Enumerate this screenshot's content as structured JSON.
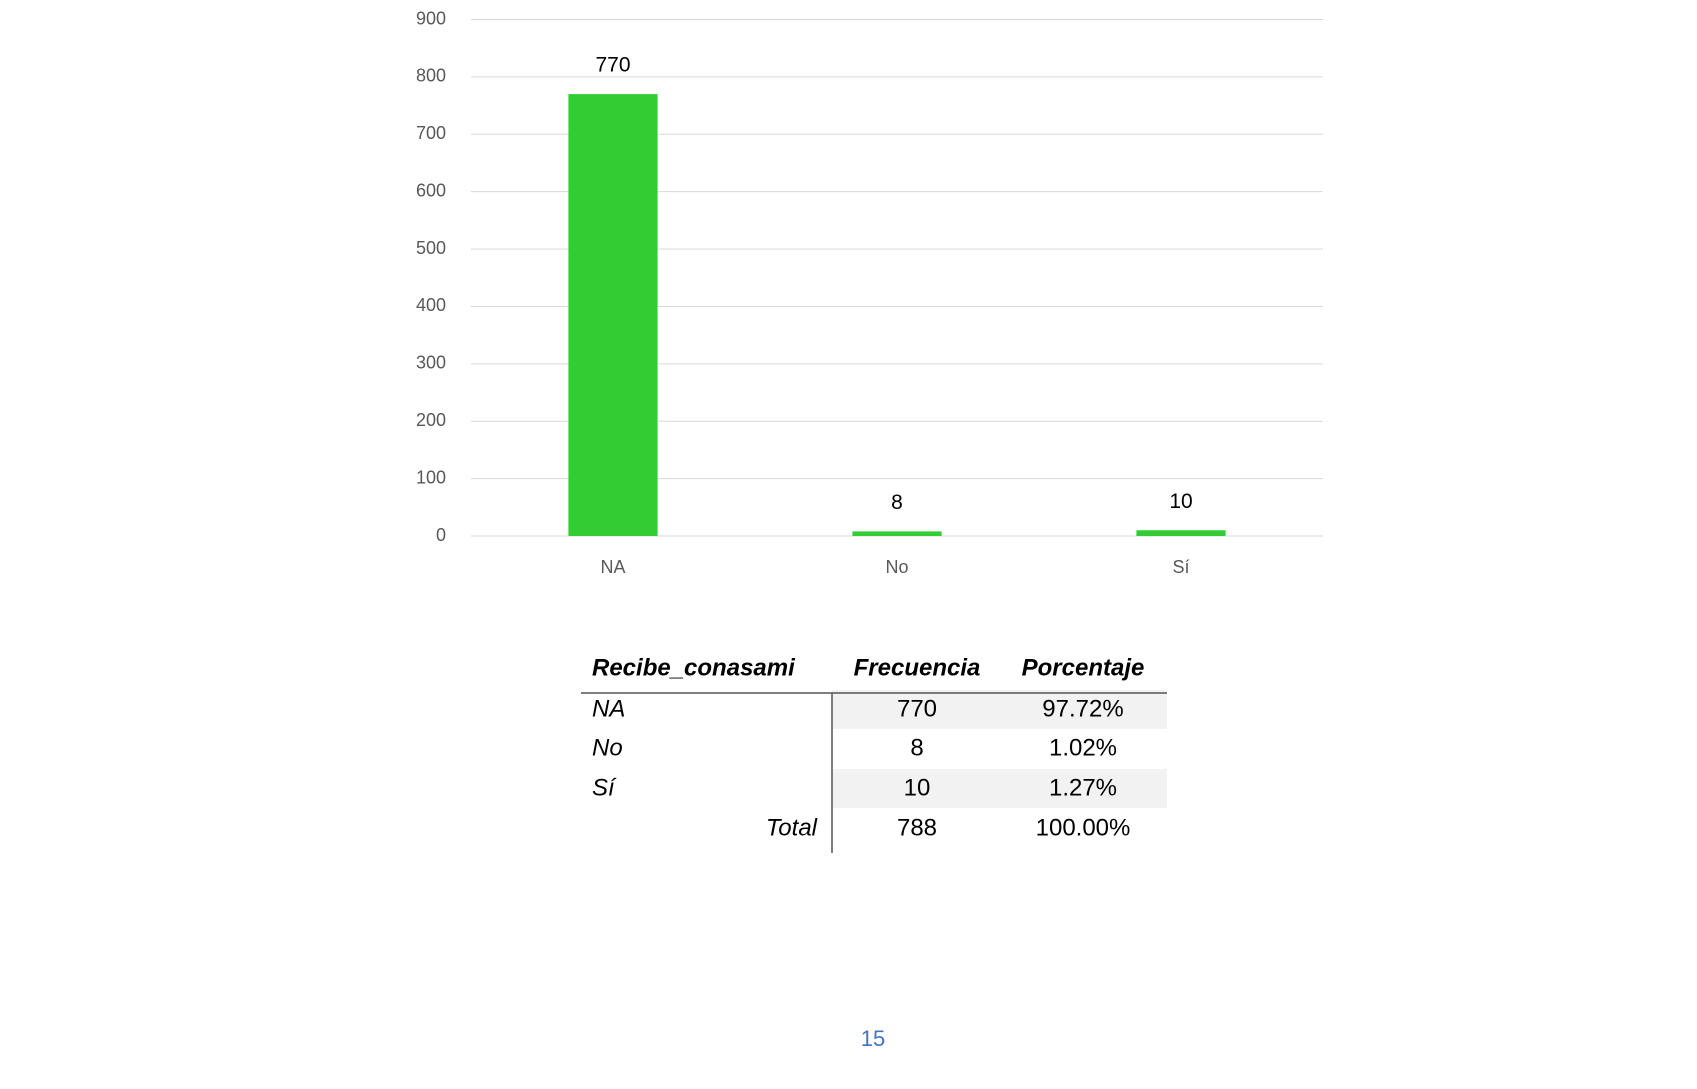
{
  "chart_data": {
    "type": "bar",
    "categories": [
      "NA",
      "No",
      "Sí"
    ],
    "values": [
      770,
      8,
      10
    ],
    "color": "#33cc33",
    "ylim": [
      0,
      900
    ],
    "yticks": [
      0,
      100,
      200,
      300,
      400,
      500,
      600,
      700,
      800,
      900
    ],
    "grid": true
  },
  "table": {
    "header": [
      "Recibe_conasami",
      "Frecuencia",
      "Porcentaje"
    ],
    "rows": [
      [
        "NA",
        "770",
        "97.72%"
      ],
      [
        "No",
        "8",
        "1.02%"
      ],
      [
        "Sí",
        "10",
        "1.27%"
      ],
      [
        "Total",
        "788",
        "100.00%"
      ]
    ]
  },
  "page_number": "15"
}
